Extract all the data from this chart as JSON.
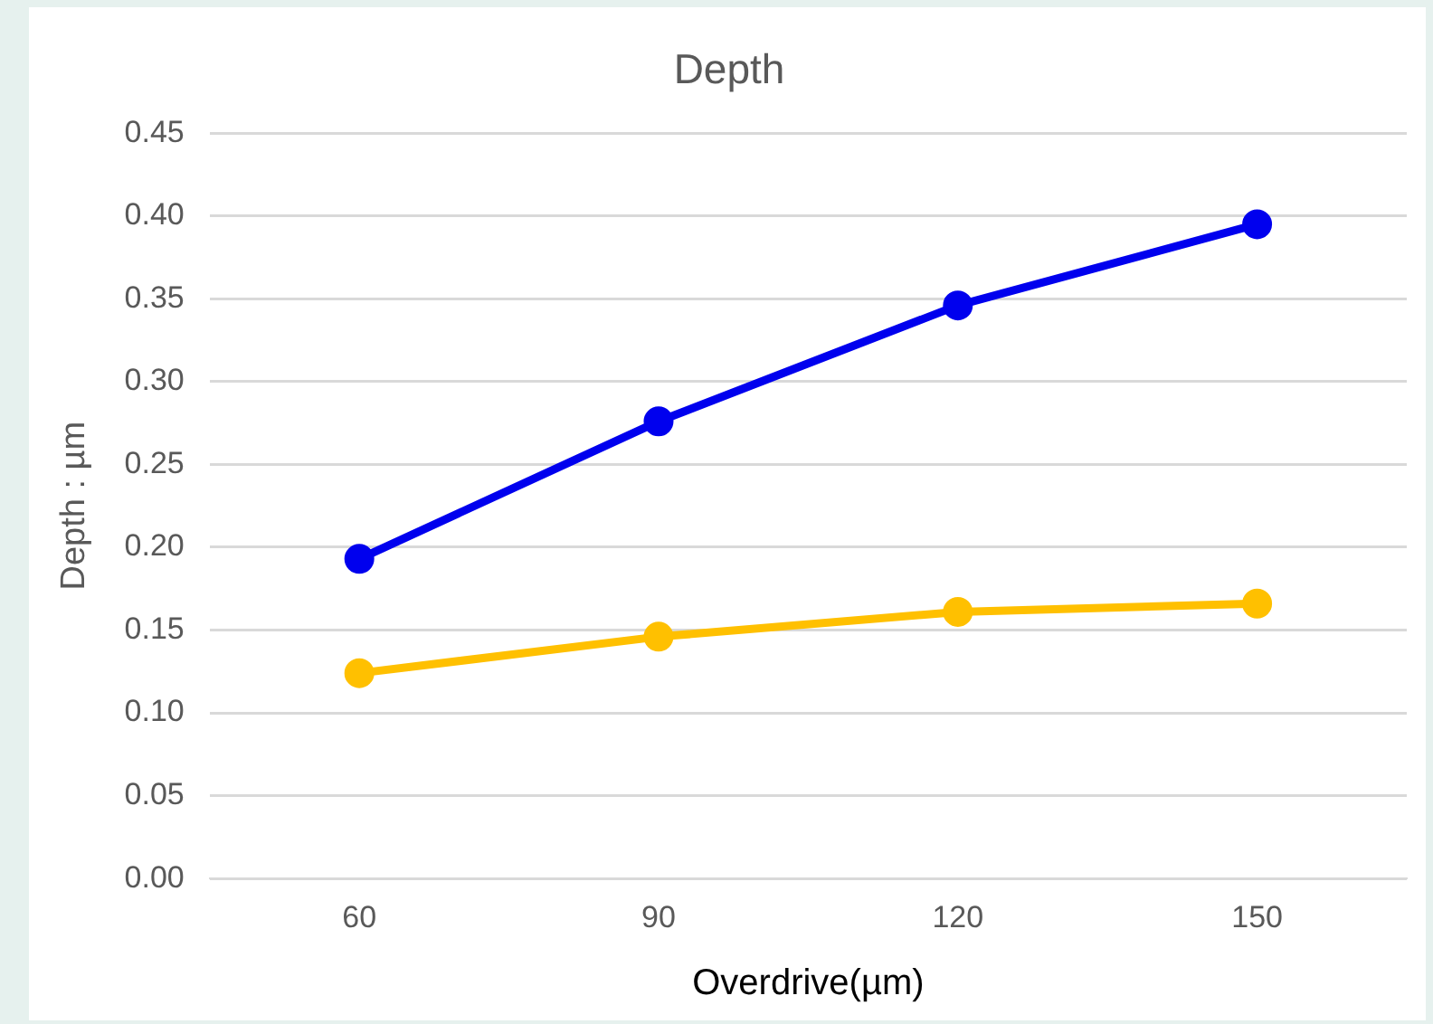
{
  "chart_data": {
    "type": "line",
    "title": "Depth",
    "xlabel": "Overdrive(µm)",
    "ylabel": "Depth : µm",
    "categories": [
      "60",
      "90",
      "120",
      "150"
    ],
    "series": [
      {
        "color": "#0000ee",
        "values": [
          0.193,
          0.276,
          0.346,
          0.395
        ]
      },
      {
        "color": "#ffc000",
        "values": [
          0.124,
          0.146,
          0.161,
          0.166
        ]
      }
    ],
    "ylim": [
      0,
      0.45
    ],
    "yticks": [
      {
        "value": 0,
        "label": "0.00"
      },
      {
        "value": 0.05,
        "label": "0.05"
      },
      {
        "value": 0.1,
        "label": "0.10"
      },
      {
        "value": 0.15,
        "label": "0.15"
      },
      {
        "value": 0.2,
        "label": "0.20"
      },
      {
        "value": 0.25,
        "label": "0.25"
      },
      {
        "value": 0.3,
        "label": "0.30"
      },
      {
        "value": 0.35,
        "label": "0.35"
      },
      {
        "value": 0.4,
        "label": "0.40"
      },
      {
        "value": 0.45,
        "label": "0.45"
      }
    ],
    "grid": "y",
    "legend": false,
    "marker": "circle",
    "line_style": "solid"
  }
}
